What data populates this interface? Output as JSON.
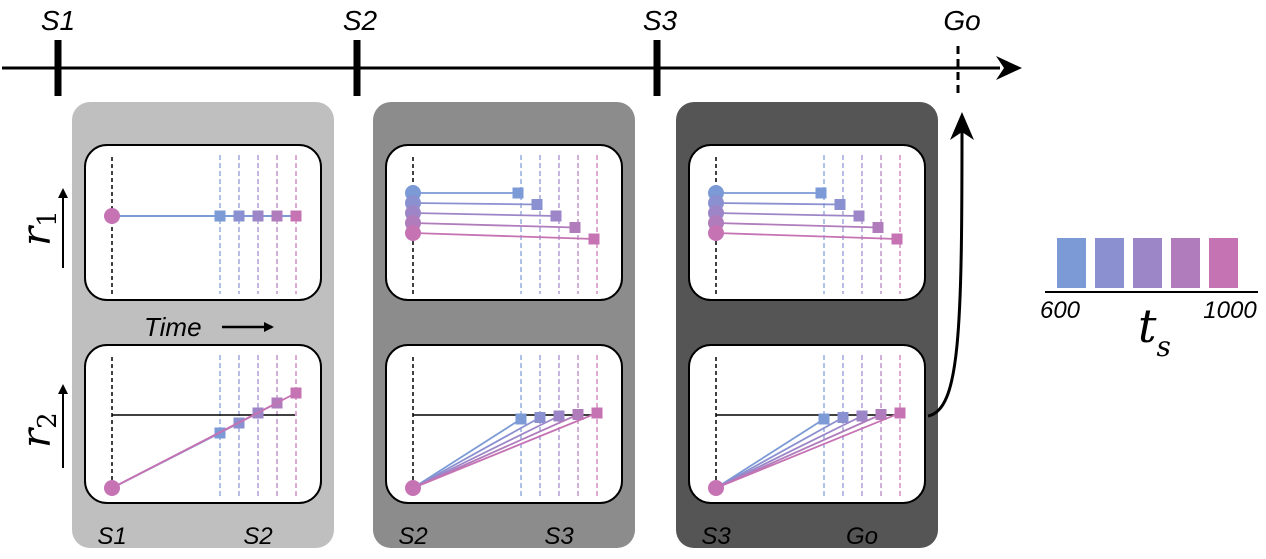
{
  "timeline": {
    "events": [
      "S1",
      "S2",
      "S3",
      "Go"
    ]
  },
  "axes": {
    "r1_label": "r",
    "r1_sub": "1",
    "r2_label": "r",
    "r2_sub": "2",
    "time_label": "Time"
  },
  "panels": [
    {
      "name": "S1-S2",
      "bg_color": "#bfbfbf",
      "start_label": "S1",
      "end_label": "S2",
      "r1_mode": "flat-converged",
      "r2_mode": "ramp-diverging"
    },
    {
      "name": "S2-S3",
      "bg_color": "#8c8c8c",
      "start_label": "S2",
      "end_label": "S3",
      "r1_mode": "staircase",
      "r2_mode": "ramp-threshold"
    },
    {
      "name": "S3-Go",
      "bg_color": "#555555",
      "start_label": "S3",
      "end_label": "Go",
      "r1_mode": "staircase",
      "r2_mode": "ramp-threshold"
    }
  ],
  "legend": {
    "title": "t",
    "title_sub": "s",
    "min_label": "600",
    "max_label": "1000",
    "colors": [
      "#7b9ad6",
      "#8a90d0",
      "#9d86c8",
      "#b07cbc",
      "#c673b3"
    ]
  }
}
